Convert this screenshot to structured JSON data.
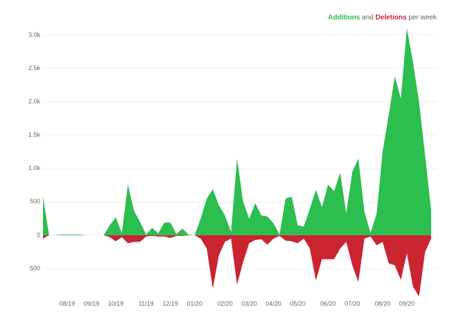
{
  "chart_data": {
    "type": "area",
    "legend_joiner": "and",
    "legend_suffix": "per week",
    "categories": [
      null,
      null,
      null,
      null,
      "08/19",
      null,
      null,
      null,
      "09/19",
      null,
      null,
      null,
      "10/19",
      null,
      null,
      null,
      null,
      "11/19",
      null,
      null,
      null,
      "12/19",
      null,
      null,
      null,
      "01/20",
      null,
      null,
      null,
      null,
      "02/20",
      null,
      null,
      null,
      "03/20",
      null,
      null,
      null,
      "04/20",
      null,
      null,
      null,
      "05/20",
      null,
      null,
      null,
      null,
      "06/20",
      null,
      null,
      null,
      "07/20",
      null,
      null,
      null,
      null,
      "08/20",
      null,
      null,
      null,
      "09/20",
      null,
      null,
      null,
      null
    ],
    "series": [
      {
        "name": "Additions",
        "color": "#2cbe4e",
        "values": [
          580,
          0,
          0,
          10,
          10,
          10,
          10,
          0,
          0,
          0,
          0,
          150,
          270,
          30,
          760,
          370,
          200,
          10,
          110,
          30,
          190,
          190,
          20,
          100,
          10,
          0,
          250,
          550,
          690,
          450,
          300,
          50,
          1150,
          500,
          250,
          480,
          300,
          280,
          180,
          10,
          550,
          580,
          150,
          130,
          400,
          680,
          420,
          760,
          660,
          940,
          330,
          950,
          1150,
          350,
          40,
          320,
          1250,
          1800,
          2380,
          2050,
          3100,
          2600,
          2000,
          1200,
          380
        ]
      },
      {
        "name": "Deletions",
        "color": "#cb2431",
        "values": [
          -50,
          0,
          0,
          0,
          0,
          0,
          0,
          0,
          0,
          0,
          0,
          -30,
          -90,
          -30,
          -120,
          -100,
          -100,
          -20,
          -10,
          -20,
          -20,
          -40,
          -10,
          -10,
          0,
          0,
          -50,
          -200,
          -800,
          -300,
          -100,
          -50,
          -740,
          -400,
          -120,
          -70,
          -60,
          -140,
          -50,
          -10,
          -80,
          -90,
          -120,
          -50,
          -200,
          -680,
          -360,
          -360,
          -360,
          -200,
          -100,
          -450,
          -700,
          -50,
          -20,
          -150,
          -100,
          -420,
          -450,
          -670,
          -270,
          -770,
          -920,
          -250,
          -50
        ]
      }
    ],
    "ylim": [
      -1000,
      3100
    ],
    "yticks": [
      {
        "value": 3000,
        "label": "3.0k"
      },
      {
        "value": 2500,
        "label": "2.5k"
      },
      {
        "value": 2000,
        "label": "2.0k"
      },
      {
        "value": 1500,
        "label": "1.5k"
      },
      {
        "value": 1000,
        "label": "1.0k"
      },
      500,
      0,
      {
        "value": -500,
        "label": "500"
      }
    ],
    "grid": true
  }
}
